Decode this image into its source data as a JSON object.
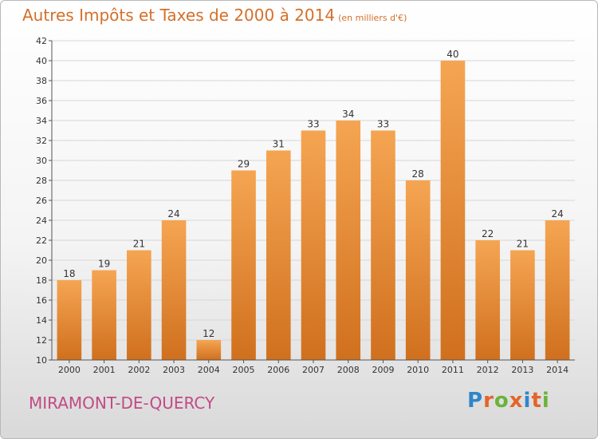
{
  "header": {
    "title": "Autres Impôts et Taxes de 2000 à 2014",
    "unit": "(en milliers d'€)"
  },
  "footer": {
    "commune": "MIRAMONT-DE-QUERCY",
    "logo": "Proxiti"
  },
  "colors": {
    "bar_top": "#f5a552",
    "bar_bottom": "#d0701e",
    "title": "#d4702a",
    "commune": "#c24a86",
    "logo": [
      "#2f86c9",
      "#e2652b",
      "#6bb33b",
      "#e2652b",
      "#2f86c9",
      "#e2652b",
      "#6bb33b"
    ]
  },
  "chart_data": {
    "type": "bar",
    "title": "Autres Impôts et Taxes de 2000 à 2014",
    "subtitle": "(en milliers d'€)",
    "categories": [
      "2000",
      "2001",
      "2002",
      "2003",
      "2004",
      "2005",
      "2006",
      "2007",
      "2008",
      "2009",
      "2010",
      "2011",
      "2012",
      "2013",
      "2014"
    ],
    "values": [
      18,
      19,
      21,
      24,
      12,
      29,
      31,
      33,
      34,
      33,
      28,
      40,
      22,
      21,
      24
    ],
    "ylim": [
      10,
      42
    ],
    "yticks": [
      10,
      12,
      14,
      16,
      18,
      20,
      22,
      24,
      26,
      28,
      30,
      32,
      34,
      36,
      38,
      40,
      42
    ],
    "grid": true,
    "legend": "none"
  }
}
